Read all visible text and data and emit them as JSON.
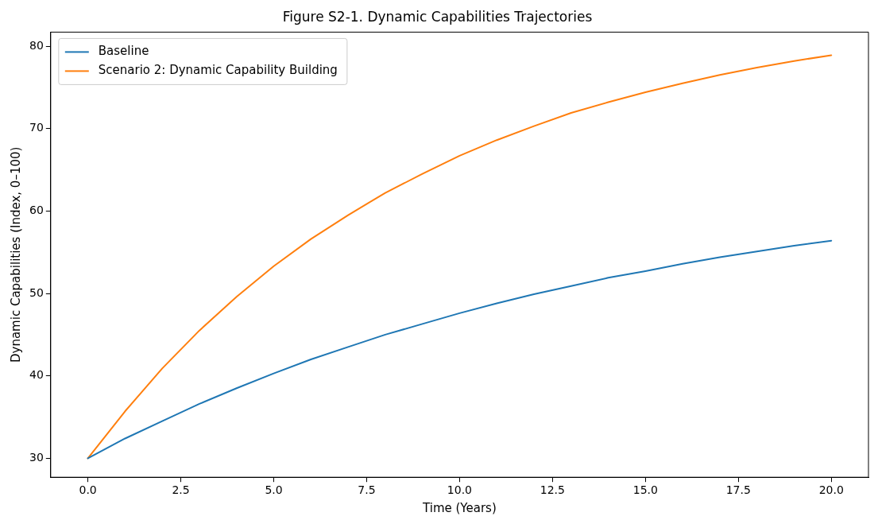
{
  "chart_data": {
    "type": "line",
    "title": "Figure S2-1. Dynamic Capabilities Trajectories",
    "xlabel": "Time (Years)",
    "ylabel": "Dynamic Capabilities (Index, 0–100)",
    "x": [
      0,
      1,
      2,
      3,
      4,
      5,
      6,
      7,
      8,
      9,
      10,
      11,
      12,
      13,
      14,
      15,
      16,
      17,
      18,
      19,
      20
    ],
    "series": [
      {
        "name": "Baseline",
        "color": "#1f77b4",
        "values": [
          30,
          32.4,
          34.5,
          36.6,
          38.5,
          40.3,
          42.0,
          43.5,
          45.0,
          46.3,
          47.6,
          48.8,
          49.9,
          50.9,
          51.9,
          52.7,
          53.6,
          54.4,
          55.1,
          55.8,
          56.4
        ]
      },
      {
        "name": "Scenario 2: Dynamic Capability Building",
        "color": "#ff7f0e",
        "values": [
          30,
          35.7,
          40.9,
          45.5,
          49.6,
          53.3,
          56.6,
          59.5,
          62.2,
          64.5,
          66.7,
          68.6,
          70.3,
          71.9,
          73.2,
          74.4,
          75.5,
          76.5,
          77.4,
          78.2,
          78.9
        ]
      }
    ],
    "xlim": [
      -1,
      21
    ],
    "xticks": [
      {
        "value": 0,
        "label": "0.0"
      },
      {
        "value": 2.5,
        "label": "2.5"
      },
      {
        "value": 5,
        "label": "5.0"
      },
      {
        "value": 7.5,
        "label": "7.5"
      },
      {
        "value": 10,
        "label": "10.0"
      },
      {
        "value": 12.5,
        "label": "12.5"
      },
      {
        "value": 15,
        "label": "15.0"
      },
      {
        "value": 17.5,
        "label": "17.5"
      },
      {
        "value": 20,
        "label": "20.0"
      }
    ],
    "ylim": [
      27.7,
      81.7
    ],
    "yticks": [
      30,
      40,
      50,
      60,
      70,
      80
    ],
    "grid": false,
    "legend": "top left",
    "marker": "none",
    "line_style": "solid"
  }
}
